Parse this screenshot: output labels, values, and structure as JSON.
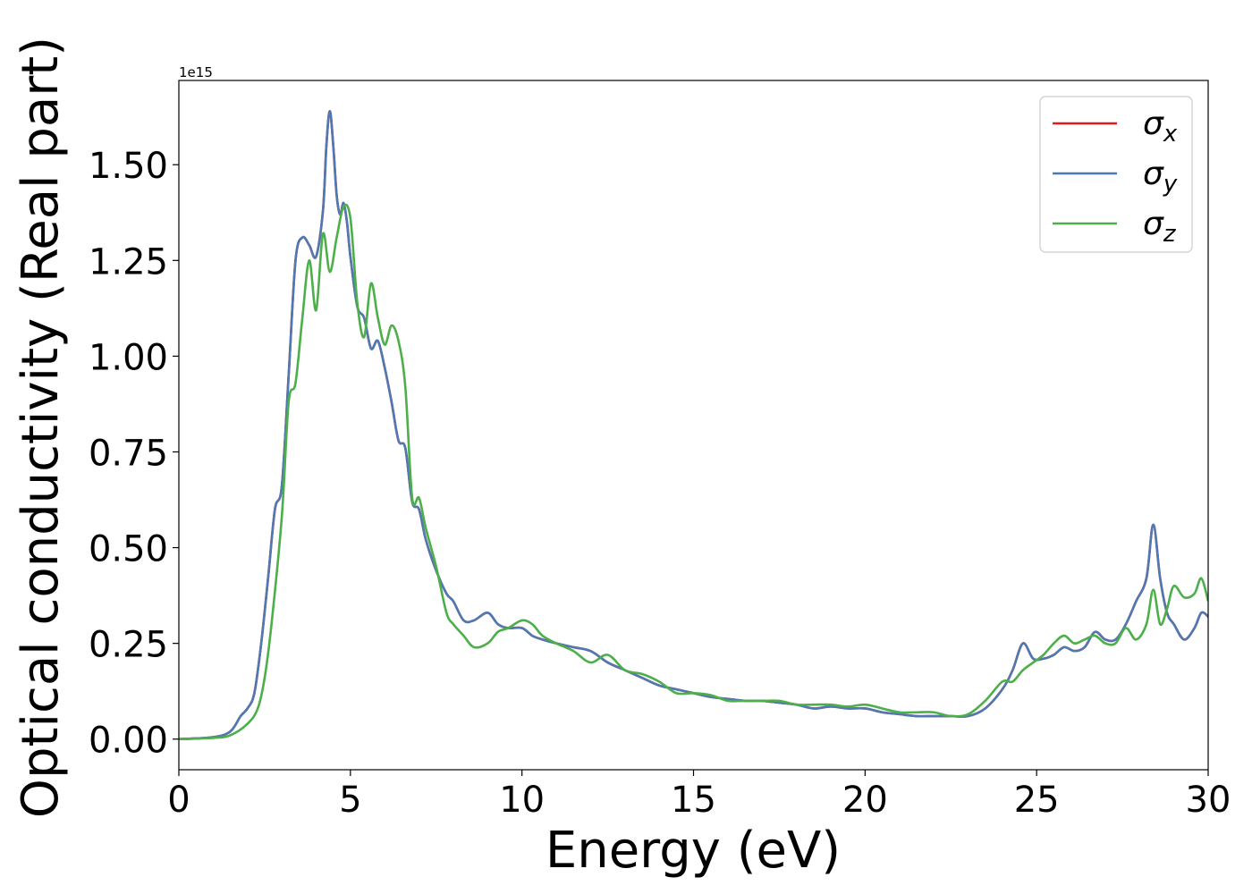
{
  "chart_data": {
    "type": "line",
    "xlabel": "Energy (eV)",
    "ylabel": "Optical conductivity (Real part)",
    "offset_label": "1e15",
    "xlim": [
      0,
      30
    ],
    "ylim": [
      -0.08,
      1.72
    ],
    "xticks": [
      0,
      5,
      10,
      15,
      20,
      25,
      30
    ],
    "xtick_labels": [
      "0",
      "5",
      "10",
      "15",
      "20",
      "25",
      "30"
    ],
    "yticks": [
      0.0,
      0.25,
      0.5,
      0.75,
      1.0,
      1.25,
      1.5
    ],
    "ytick_labels": [
      "0.00",
      "0.25",
      "0.50",
      "0.75",
      "1.00",
      "1.25",
      "1.50"
    ],
    "grid": false,
    "legend": {
      "placement": "top-right"
    },
    "series": [
      {
        "name": "σx",
        "label_base": "σ",
        "label_sub": "x",
        "color": "#e41a1c",
        "x": [
          0,
          1,
          1.5,
          1.8,
          2.0,
          2.2,
          2.4,
          2.6,
          2.8,
          3.0,
          3.2,
          3.4,
          3.6,
          3.8,
          4.0,
          4.2,
          4.3,
          4.4,
          4.5,
          4.6,
          4.7,
          4.8,
          4.9,
          5.0,
          5.2,
          5.4,
          5.6,
          5.8,
          6.0,
          6.2,
          6.4,
          6.6,
          6.8,
          7.0,
          7.2,
          7.5,
          7.8,
          8.0,
          8.3,
          8.6,
          9.0,
          9.3,
          9.6,
          10.0,
          10.3,
          10.6,
          11.0,
          11.5,
          12.0,
          12.5,
          13.0,
          13.5,
          14.0,
          14.5,
          15.0,
          15.5,
          16.0,
          16.5,
          17.0,
          17.5,
          18.0,
          18.5,
          19.0,
          19.5,
          20.0,
          20.5,
          21.0,
          21.5,
          22.0,
          22.5,
          23.0,
          23.5,
          24.0,
          24.3,
          24.6,
          24.9,
          25.2,
          25.5,
          25.8,
          26.1,
          26.4,
          26.7,
          27.0,
          27.3,
          27.6,
          27.9,
          28.2,
          28.4,
          28.6,
          28.8,
          29.0,
          29.3,
          29.6,
          29.8,
          30.0
        ],
        "y": [
          0,
          0.005,
          0.02,
          0.06,
          0.08,
          0.12,
          0.25,
          0.42,
          0.6,
          0.66,
          0.95,
          1.25,
          1.31,
          1.29,
          1.26,
          1.38,
          1.55,
          1.64,
          1.55,
          1.42,
          1.37,
          1.4,
          1.35,
          1.26,
          1.13,
          1.1,
          1.02,
          1.04,
          0.97,
          0.88,
          0.78,
          0.76,
          0.62,
          0.6,
          0.52,
          0.44,
          0.38,
          0.36,
          0.31,
          0.31,
          0.33,
          0.3,
          0.29,
          0.29,
          0.27,
          0.26,
          0.25,
          0.24,
          0.23,
          0.2,
          0.18,
          0.16,
          0.14,
          0.13,
          0.12,
          0.11,
          0.105,
          0.1,
          0.1,
          0.095,
          0.09,
          0.08,
          0.085,
          0.08,
          0.08,
          0.07,
          0.065,
          0.06,
          0.06,
          0.06,
          0.06,
          0.08,
          0.13,
          0.18,
          0.25,
          0.21,
          0.21,
          0.22,
          0.24,
          0.23,
          0.24,
          0.28,
          0.26,
          0.26,
          0.3,
          0.36,
          0.42,
          0.56,
          0.42,
          0.33,
          0.3,
          0.26,
          0.29,
          0.33,
          0.32
        ]
      },
      {
        "name": "σy",
        "label_base": "σ",
        "label_sub": "y",
        "color": "#4e79b2",
        "x": [
          0,
          1,
          1.5,
          1.8,
          2.0,
          2.2,
          2.4,
          2.6,
          2.8,
          3.0,
          3.2,
          3.4,
          3.6,
          3.8,
          4.0,
          4.2,
          4.3,
          4.4,
          4.5,
          4.6,
          4.7,
          4.8,
          4.9,
          5.0,
          5.2,
          5.4,
          5.6,
          5.8,
          6.0,
          6.2,
          6.4,
          6.6,
          6.8,
          7.0,
          7.2,
          7.5,
          7.8,
          8.0,
          8.3,
          8.6,
          9.0,
          9.3,
          9.6,
          10.0,
          10.3,
          10.6,
          11.0,
          11.5,
          12.0,
          12.5,
          13.0,
          13.5,
          14.0,
          14.5,
          15.0,
          15.5,
          16.0,
          16.5,
          17.0,
          17.5,
          18.0,
          18.5,
          19.0,
          19.5,
          20.0,
          20.5,
          21.0,
          21.5,
          22.0,
          22.5,
          23.0,
          23.5,
          24.0,
          24.3,
          24.6,
          24.9,
          25.2,
          25.5,
          25.8,
          26.1,
          26.4,
          26.7,
          27.0,
          27.3,
          27.6,
          27.9,
          28.2,
          28.4,
          28.6,
          28.8,
          29.0,
          29.3,
          29.6,
          29.8,
          30.0
        ],
        "y": [
          0,
          0.005,
          0.02,
          0.06,
          0.08,
          0.12,
          0.25,
          0.42,
          0.6,
          0.66,
          0.95,
          1.25,
          1.31,
          1.29,
          1.26,
          1.38,
          1.55,
          1.64,
          1.55,
          1.42,
          1.37,
          1.4,
          1.35,
          1.26,
          1.13,
          1.1,
          1.02,
          1.04,
          0.97,
          0.88,
          0.78,
          0.76,
          0.62,
          0.6,
          0.52,
          0.44,
          0.38,
          0.36,
          0.31,
          0.31,
          0.33,
          0.3,
          0.29,
          0.29,
          0.27,
          0.26,
          0.25,
          0.24,
          0.23,
          0.2,
          0.18,
          0.16,
          0.14,
          0.13,
          0.12,
          0.11,
          0.105,
          0.1,
          0.1,
          0.095,
          0.09,
          0.08,
          0.085,
          0.08,
          0.08,
          0.07,
          0.065,
          0.06,
          0.06,
          0.06,
          0.06,
          0.08,
          0.13,
          0.18,
          0.25,
          0.21,
          0.21,
          0.22,
          0.24,
          0.23,
          0.24,
          0.28,
          0.26,
          0.26,
          0.3,
          0.36,
          0.42,
          0.56,
          0.42,
          0.33,
          0.3,
          0.26,
          0.29,
          0.33,
          0.32
        ]
      },
      {
        "name": "σz",
        "label_base": "σ",
        "label_sub": "z",
        "color": "#4daf4a",
        "x": [
          0,
          1,
          1.5,
          2.0,
          2.3,
          2.5,
          2.7,
          3.0,
          3.2,
          3.4,
          3.6,
          3.8,
          4.0,
          4.2,
          4.4,
          4.6,
          4.8,
          5.0,
          5.2,
          5.4,
          5.6,
          5.8,
          6.0,
          6.2,
          6.4,
          6.6,
          6.8,
          7.0,
          7.2,
          7.5,
          7.8,
          8.0,
          8.3,
          8.6,
          9.0,
          9.3,
          9.6,
          10.0,
          10.3,
          10.6,
          11.0,
          11.5,
          12.0,
          12.5,
          13.0,
          13.5,
          14.0,
          14.5,
          15.0,
          15.5,
          16.0,
          16.5,
          17.0,
          17.5,
          18.0,
          18.5,
          19.0,
          19.5,
          20.0,
          20.5,
          21.0,
          21.5,
          22.0,
          22.5,
          23.0,
          23.5,
          24.0,
          24.3,
          24.6,
          24.9,
          25.2,
          25.5,
          25.8,
          26.1,
          26.4,
          26.7,
          27.0,
          27.3,
          27.6,
          27.9,
          28.2,
          28.4,
          28.6,
          28.8,
          29.0,
          29.3,
          29.6,
          29.8,
          30.0
        ],
        "y": [
          0,
          0.003,
          0.01,
          0.04,
          0.08,
          0.16,
          0.3,
          0.58,
          0.88,
          0.93,
          1.1,
          1.25,
          1.12,
          1.32,
          1.22,
          1.31,
          1.39,
          1.36,
          1.14,
          1.05,
          1.19,
          1.1,
          1.03,
          1.08,
          1.04,
          0.92,
          0.63,
          0.63,
          0.55,
          0.45,
          0.33,
          0.3,
          0.27,
          0.24,
          0.25,
          0.28,
          0.29,
          0.31,
          0.3,
          0.27,
          0.25,
          0.23,
          0.2,
          0.22,
          0.18,
          0.17,
          0.15,
          0.12,
          0.12,
          0.115,
          0.1,
          0.1,
          0.1,
          0.1,
          0.09,
          0.09,
          0.09,
          0.085,
          0.09,
          0.08,
          0.07,
          0.07,
          0.07,
          0.06,
          0.065,
          0.1,
          0.15,
          0.15,
          0.18,
          0.2,
          0.22,
          0.25,
          0.27,
          0.25,
          0.26,
          0.27,
          0.25,
          0.25,
          0.29,
          0.26,
          0.3,
          0.39,
          0.3,
          0.34,
          0.4,
          0.37,
          0.38,
          0.42,
          0.36
        ]
      }
    ]
  }
}
